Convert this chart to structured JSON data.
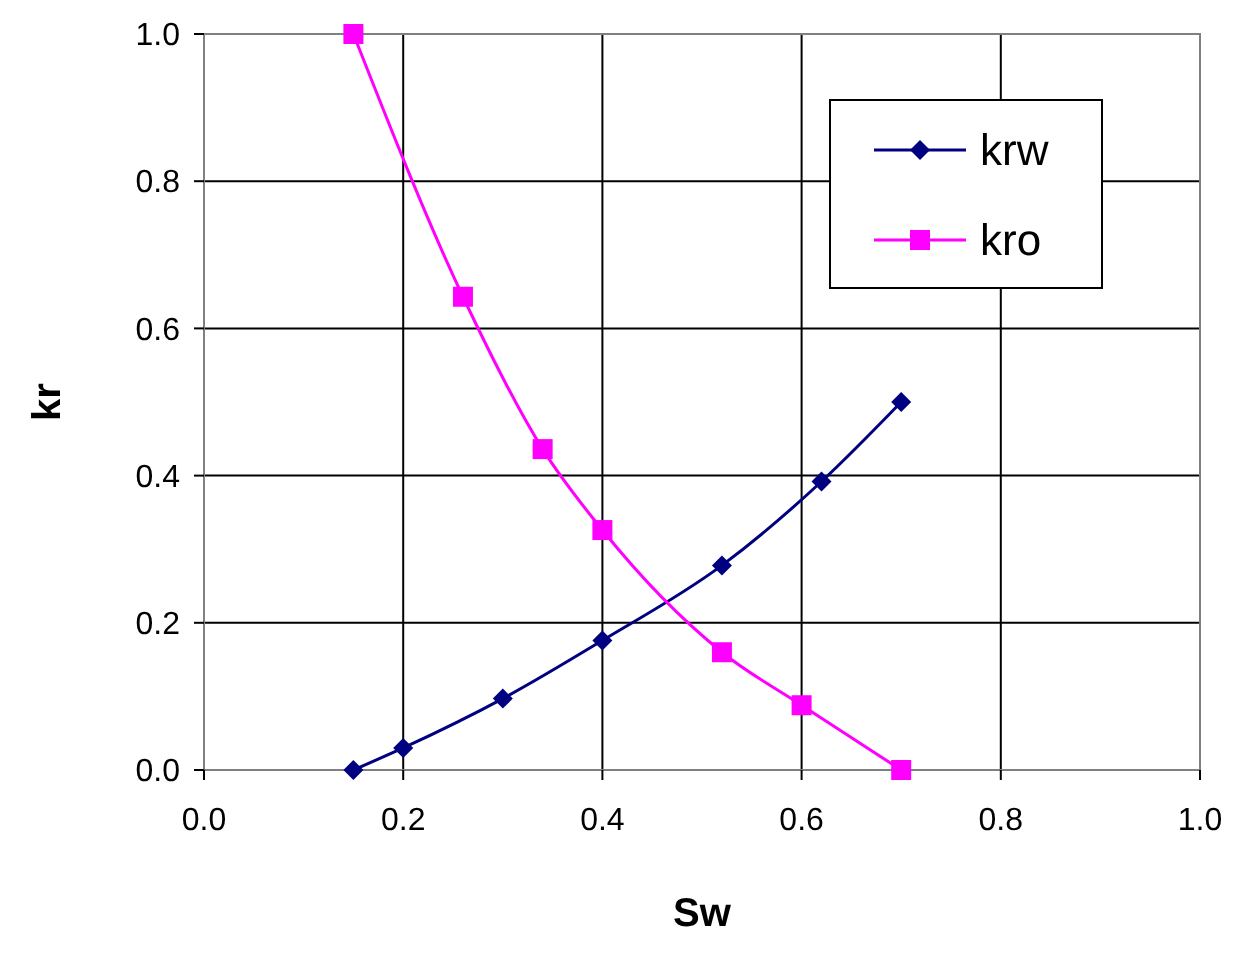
{
  "chart_data": {
    "type": "line",
    "xlabel": "Sw",
    "ylabel": "kr",
    "xlim": [
      0,
      1
    ],
    "ylim": [
      0,
      1
    ],
    "xticks": [
      {
        "value": 0,
        "label": "0.0"
      },
      {
        "value": 0.2,
        "label": "0.2"
      },
      {
        "value": 0.4,
        "label": "0.4"
      },
      {
        "value": 0.6,
        "label": "0.6"
      },
      {
        "value": 0.8,
        "label": "0.8"
      },
      {
        "value": 1,
        "label": "1.0"
      }
    ],
    "yticks": [
      {
        "value": 0,
        "label": "0.0"
      },
      {
        "value": 0.2,
        "label": "0.2"
      },
      {
        "value": 0.4,
        "label": "0.4"
      },
      {
        "value": 0.6,
        "label": "0.6"
      },
      {
        "value": 0.8,
        "label": "0.8"
      },
      {
        "value": 1,
        "label": "1.0"
      }
    ],
    "grid": true,
    "legend": "top right",
    "line_style": "solid",
    "series": [
      {
        "name": "krw",
        "color": "#000080",
        "marker": "diamond",
        "x": [
          0.15,
          0.2,
          0.3,
          0.4,
          0.52,
          0.62,
          0.7
        ],
        "values": [
          0,
          0.03,
          0.097,
          0.176,
          0.278,
          0.392,
          0.5
        ]
      },
      {
        "name": "kro",
        "color": "#ff00ff",
        "marker": "square",
        "x": [
          0.15,
          0.26,
          0.34,
          0.4,
          0.52,
          0.6,
          0.7
        ],
        "values": [
          1,
          0.643,
          0.436,
          0.326,
          0.16,
          0.088,
          0
        ]
      }
    ]
  }
}
